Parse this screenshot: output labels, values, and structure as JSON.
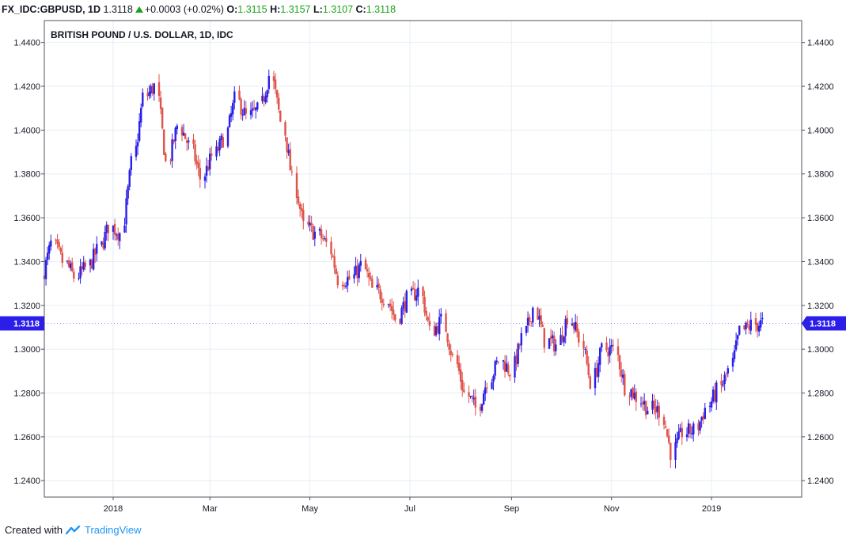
{
  "header": {
    "symbol": "FX_IDC:GBPUSD, 1D",
    "last": "1.3118",
    "change": "+0.0003 (+0.02%)",
    "o_label": "O:",
    "o_val": "1.3115",
    "h_label": "H:",
    "h_val": "1.3157",
    "l_label": "L:",
    "l_val": "1.3107",
    "c_label": "C:",
    "c_val": "1.3118"
  },
  "footer": {
    "created_with": "Created with",
    "brand": "TradingView"
  },
  "colors": {
    "up": "#2a1ee8",
    "down": "#e0524a",
    "grid": "#e6eef5",
    "price_tag": "#2a1ee8",
    "change": "#1aa31a"
  },
  "chart_data": {
    "type": "candlestick",
    "title": "BRITISH POUND / U.S. DOLLAR, 1D, IDC",
    "ylim": [
      1.2325,
      1.45
    ],
    "yticks": [
      "1.2400",
      "1.2600",
      "1.2800",
      "1.3000",
      "1.3200",
      "1.3400",
      "1.3600",
      "1.3800",
      "1.4000",
      "1.4200",
      "1.4400"
    ],
    "xticks": [
      {
        "label": "2018",
        "date": "2018-01-01"
      },
      {
        "label": "Mar",
        "date": "2018-03-01"
      },
      {
        "label": "May",
        "date": "2018-05-01"
      },
      {
        "label": "Jul",
        "date": "2018-07-01"
      },
      {
        "label": "Sep",
        "date": "2018-09-01"
      },
      {
        "label": "Nov",
        "date": "2018-11-01"
      },
      {
        "label": "2019",
        "date": "2019-01-01"
      }
    ],
    "xrange": [
      "2017-11-20",
      "2019-02-25"
    ],
    "last_price": "1.3118",
    "weekly_close": [
      [
        "2017-11-20",
        1.333
      ],
      [
        "2017-11-27",
        1.348
      ],
      [
        "2017-12-04",
        1.34
      ],
      [
        "2017-12-11",
        1.333
      ],
      [
        "2017-12-18",
        1.337
      ],
      [
        "2017-12-25",
        1.345
      ],
      [
        "2018-01-01",
        1.356
      ],
      [
        "2018-01-08",
        1.353
      ],
      [
        "2018-01-15",
        1.385
      ],
      [
        "2018-01-22",
        1.415
      ],
      [
        "2018-01-29",
        1.42
      ],
      [
        "2018-02-05",
        1.385
      ],
      [
        "2018-02-12",
        1.402
      ],
      [
        "2018-02-19",
        1.393
      ],
      [
        "2018-02-26",
        1.378
      ],
      [
        "2018-03-05",
        1.388
      ],
      [
        "2018-03-12",
        1.396
      ],
      [
        "2018-03-19",
        1.414
      ],
      [
        "2018-03-26",
        1.406
      ],
      [
        "2018-04-02",
        1.409
      ],
      [
        "2018-04-09",
        1.425
      ],
      [
        "2018-04-16",
        1.404
      ],
      [
        "2018-04-23",
        1.377
      ],
      [
        "2018-04-30",
        1.356
      ],
      [
        "2018-05-07",
        1.353
      ],
      [
        "2018-05-14",
        1.348
      ],
      [
        "2018-05-21",
        1.332
      ],
      [
        "2018-05-28",
        1.332
      ],
      [
        "2018-06-04",
        1.338
      ],
      [
        "2018-06-11",
        1.327
      ],
      [
        "2018-06-18",
        1.324
      ],
      [
        "2018-06-25",
        1.314
      ],
      [
        "2018-07-02",
        1.323
      ],
      [
        "2018-07-09",
        1.327
      ],
      [
        "2018-07-16",
        1.308
      ],
      [
        "2018-07-23",
        1.313
      ],
      [
        "2018-07-30",
        1.296
      ],
      [
        "2018-08-06",
        1.28
      ],
      [
        "2018-08-13",
        1.273
      ],
      [
        "2018-08-20",
        1.286
      ],
      [
        "2018-08-27",
        1.295
      ],
      [
        "2018-09-03",
        1.29
      ],
      [
        "2018-09-10",
        1.305
      ],
      [
        "2018-09-17",
        1.319
      ],
      [
        "2018-09-24",
        1.304
      ],
      [
        "2018-10-01",
        1.302
      ],
      [
        "2018-10-08",
        1.315
      ],
      [
        "2018-10-15",
        1.305
      ],
      [
        "2018-10-22",
        1.285
      ],
      [
        "2018-10-29",
        1.3
      ],
      [
        "2018-11-05",
        1.3
      ],
      [
        "2018-11-12",
        1.283
      ],
      [
        "2018-11-19",
        1.278
      ],
      [
        "2018-11-26",
        1.273
      ],
      [
        "2018-12-03",
        1.272
      ],
      [
        "2018-12-10",
        1.253
      ],
      [
        "2018-12-17",
        1.262
      ],
      [
        "2018-12-24",
        1.263
      ],
      [
        "2018-12-31",
        1.273
      ],
      [
        "2019-01-07",
        1.281
      ],
      [
        "2019-01-14",
        1.29
      ],
      [
        "2019-01-21",
        1.308
      ],
      [
        "2019-01-28",
        1.311
      ],
      [
        "2019-02-04",
        1.3118
      ]
    ]
  }
}
